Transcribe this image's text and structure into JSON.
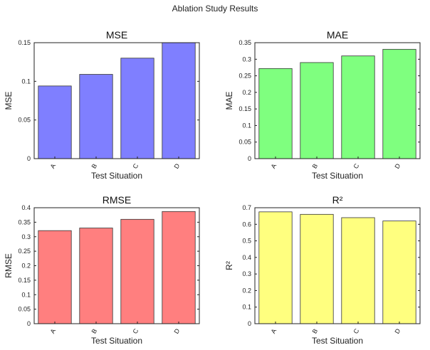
{
  "figure_title": "Ablation Study Results",
  "chart_data": [
    {
      "type": "bar",
      "title": "MSE",
      "xlabel": "Test Situation",
      "ylabel": "MSE",
      "categories": [
        "A",
        "B",
        "C",
        "D"
      ],
      "values": [
        0.094,
        0.109,
        0.13,
        0.15
      ],
      "ylim": [
        0,
        0.15
      ],
      "yticks": [
        0,
        0.05,
        0.1,
        0.15
      ],
      "ytick_labels": [
        "0",
        "0.05",
        "0.1",
        "0.15"
      ],
      "color": "#7f7fff"
    },
    {
      "type": "bar",
      "title": "MAE",
      "xlabel": "Test Situation",
      "ylabel": "MAE",
      "categories": [
        "A",
        "B",
        "C",
        "D"
      ],
      "values": [
        0.272,
        0.29,
        0.31,
        0.33
      ],
      "ylim": [
        0,
        0.35
      ],
      "yticks": [
        0,
        0.05,
        0.1,
        0.15,
        0.2,
        0.25,
        0.3,
        0.35
      ],
      "ytick_labels": [
        "0",
        "0.05",
        "0.1",
        "0.15",
        "0.2",
        "0.25",
        "0.3",
        "0.35"
      ],
      "color": "#7fff7f"
    },
    {
      "type": "bar",
      "title": "RMSE",
      "xlabel": "Test Situation",
      "ylabel": "RMSE",
      "categories": [
        "A",
        "B",
        "C",
        "D"
      ],
      "values": [
        0.321,
        0.33,
        0.36,
        0.387
      ],
      "ylim": [
        0,
        0.4
      ],
      "yticks": [
        0,
        0.05,
        0.1,
        0.15,
        0.2,
        0.25,
        0.3,
        0.35,
        0.4
      ],
      "ytick_labels": [
        "0",
        "0.05",
        "0.1",
        "0.15",
        "0.2",
        "0.25",
        "0.3",
        "0.35",
        "0.4"
      ],
      "color": "#ff7f7f"
    },
    {
      "type": "bar",
      "title": "R²",
      "xlabel": "Test Situation",
      "ylabel": "R²",
      "categories": [
        "A",
        "B",
        "C",
        "D"
      ],
      "values": [
        0.675,
        0.66,
        0.64,
        0.62
      ],
      "ylim": [
        0,
        0.7
      ],
      "yticks": [
        0,
        0.1,
        0.2,
        0.3,
        0.4,
        0.5,
        0.6,
        0.7
      ],
      "ytick_labels": [
        "0",
        "0.1",
        "0.2",
        "0.3",
        "0.4",
        "0.5",
        "0.6",
        "0.7"
      ],
      "color": "#ffff7f"
    }
  ]
}
